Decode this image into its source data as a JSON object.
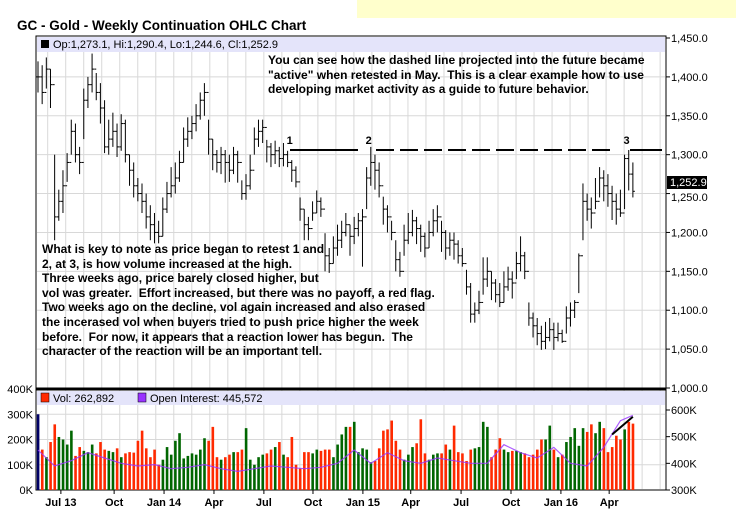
{
  "title": "GC - Gold - Weekly Continuation OHLC Chart",
  "price_legend": "Op:1,273.1, Hi:1,290.4, Lo:1,244.6, Cl:1,252.9",
  "volume_legend": {
    "vol": "Vol: 262,892",
    "oi": "Open Interest: 445,572"
  },
  "last_price_label": "1,252.9",
  "annotations": {
    "top": "You can see how the dashed line projected into the future became\n\"active\" when retested in May.  This is a clear example how to use\ndeveloping market activity as a guide to future behavior.",
    "bottom": "What is key to note as price began to retest 1 and\n2, at 3, is how volume increased at the high.\nThree weeks ago, price barely closed higher, but\nvol was greater.  Effort increased, but there was no payoff, a red flag.\nTwo weeks ago on the decline, vol again increased and also erased\nthe incerased vol when buyers tried to push price higher the week\nbefore.  For now, it appears that a reaction lower has begun.  The\ncharacter of the reaction will be an important tell.",
    "markers": [
      {
        "label": "1",
        "week": 60
      },
      {
        "label": "2",
        "week": 79
      },
      {
        "label": "3",
        "week": 141
      }
    ]
  },
  "colors": {
    "up": "#006600",
    "down": "#ff2a00",
    "unchanged": "#000066",
    "oi": "#9933ff",
    "band": "#e4e4fa",
    "grid": "#d8d8d8"
  },
  "chart_data": {
    "type": "ohlc",
    "price": {
      "ylim": [
        1000,
        1450
      ],
      "ticks": [
        "1,000.0",
        "1,050.0",
        "1,100.0",
        "1,150.0",
        "1,200.0",
        "1,250.0",
        "1,300.0",
        "1,350.0",
        "1,400.0",
        "1,450.0"
      ],
      "tick_values": [
        1000,
        1050,
        1100,
        1150,
        1200,
        1250,
        1300,
        1350,
        1400,
        1450
      ],
      "resistance_level": 1306,
      "bars_hlc": [
        [
          1420,
          1380,
          1400
        ],
        [
          1415,
          1365,
          1380
        ],
        [
          1425,
          1385,
          1410
        ],
        [
          1410,
          1360,
          1390
        ],
        [
          1300,
          1190,
          1220
        ],
        [
          1255,
          1215,
          1240
        ],
        [
          1280,
          1225,
          1260
        ],
        [
          1302,
          1265,
          1290
        ],
        [
          1345,
          1300,
          1330
        ],
        [
          1340,
          1290,
          1300
        ],
        [
          1310,
          1275,
          1290
        ],
        [
          1385,
          1320,
          1370
        ],
        [
          1400,
          1360,
          1390
        ],
        [
          1430,
          1380,
          1410
        ],
        [
          1405,
          1370,
          1380
        ],
        [
          1392,
          1340,
          1360
        ],
        [
          1370,
          1302,
          1310
        ],
        [
          1345,
          1300,
          1320
        ],
        [
          1354,
          1310,
          1330
        ],
        [
          1340,
          1297,
          1310
        ],
        [
          1352,
          1305,
          1340
        ],
        [
          1345,
          1290,
          1300
        ],
        [
          1300,
          1260,
          1280
        ],
        [
          1290,
          1245,
          1260
        ],
        [
          1270,
          1240,
          1250
        ],
        [
          1263,
          1225,
          1240
        ],
        [
          1250,
          1205,
          1220
        ],
        [
          1235,
          1190,
          1210
        ],
        [
          1225,
          1186,
          1200
        ],
        [
          1215,
          1186,
          1195
        ],
        [
          1245,
          1195,
          1230
        ],
        [
          1265,
          1225,
          1250
        ],
        [
          1284,
          1245,
          1260
        ],
        [
          1290,
          1250,
          1270
        ],
        [
          1305,
          1265,
          1290
        ],
        [
          1335,
          1290,
          1320
        ],
        [
          1348,
          1310,
          1330
        ],
        [
          1350,
          1320,
          1340
        ],
        [
          1365,
          1330,
          1350
        ],
        [
          1380,
          1345,
          1370
        ],
        [
          1392,
          1350,
          1380
        ],
        [
          1345,
          1300,
          1320
        ],
        [
          1320,
          1280,
          1300
        ],
        [
          1306,
          1277,
          1290
        ],
        [
          1310,
          1275,
          1300
        ],
        [
          1306,
          1264,
          1290
        ],
        [
          1300,
          1265,
          1280
        ],
        [
          1310,
          1275,
          1300
        ],
        [
          1305,
          1264,
          1290
        ],
        [
          1267,
          1242,
          1250
        ],
        [
          1275,
          1242,
          1260
        ],
        [
          1300,
          1255,
          1280
        ],
        [
          1335,
          1300,
          1320
        ],
        [
          1345,
          1310,
          1330
        ],
        [
          1345,
          1315,
          1335
        ],
        [
          1319,
          1290,
          1310
        ],
        [
          1315,
          1284,
          1300
        ],
        [
          1318,
          1288,
          1305
        ],
        [
          1310,
          1284,
          1295
        ],
        [
          1315,
          1285,
          1300
        ],
        [
          1305,
          1284,
          1290
        ],
        [
          1293,
          1265,
          1280
        ],
        [
          1285,
          1258,
          1265
        ],
        [
          1245,
          1215,
          1230
        ],
        [
          1230,
          1190,
          1210
        ],
        [
          1220,
          1190,
          1205
        ],
        [
          1240,
          1215,
          1225
        ],
        [
          1254,
          1225,
          1240
        ],
        [
          1245,
          1220,
          1230
        ],
        [
          1199,
          1150,
          1170
        ],
        [
          1180,
          1148,
          1160
        ],
        [
          1195,
          1160,
          1180
        ],
        [
          1210,
          1170,
          1190
        ],
        [
          1215,
          1180,
          1200
        ],
        [
          1225,
          1195,
          1210
        ],
        [
          1210,
          1170,
          1195
        ],
        [
          1220,
          1185,
          1205
        ],
        [
          1225,
          1195,
          1215
        ],
        [
          1230,
          1156,
          1220
        ],
        [
          1284,
          1230,
          1270
        ],
        [
          1310,
          1260,
          1290
        ],
        [
          1300,
          1255,
          1280
        ],
        [
          1290,
          1245,
          1260
        ],
        [
          1246,
          1210,
          1230
        ],
        [
          1235,
          1200,
          1220
        ],
        [
          1215,
          1190,
          1200
        ],
        [
          1190,
          1150,
          1165
        ],
        [
          1175,
          1143,
          1150
        ],
        [
          1210,
          1170,
          1190
        ],
        [
          1225,
          1185,
          1200
        ],
        [
          1229,
          1195,
          1215
        ],
        [
          1220,
          1185,
          1205
        ],
        [
          1210,
          1175,
          1195
        ],
        [
          1200,
          1168,
          1180
        ],
        [
          1215,
          1180,
          1200
        ],
        [
          1230,
          1195,
          1215
        ],
        [
          1235,
          1200,
          1220
        ],
        [
          1215,
          1175,
          1200
        ],
        [
          1203,
          1165,
          1180
        ],
        [
          1200,
          1170,
          1190
        ],
        [
          1200,
          1165,
          1185
        ],
        [
          1190,
          1160,
          1170
        ],
        [
          1180,
          1156,
          1160
        ],
        [
          1152,
          1120,
          1130
        ],
        [
          1135,
          1084,
          1095
        ],
        [
          1110,
          1084,
          1100
        ],
        [
          1125,
          1095,
          1110
        ],
        [
          1168,
          1120,
          1140
        ],
        [
          1168,
          1130,
          1150
        ],
        [
          1150,
          1113,
          1135
        ],
        [
          1140,
          1110,
          1120
        ],
        [
          1135,
          1104,
          1110
        ],
        [
          1150,
          1110,
          1130
        ],
        [
          1156,
          1125,
          1140
        ],
        [
          1150,
          1115,
          1135
        ],
        [
          1175,
          1140,
          1160
        ],
        [
          1195,
          1150,
          1170
        ],
        [
          1175,
          1140,
          1150
        ],
        [
          1110,
          1080,
          1090
        ],
        [
          1097,
          1065,
          1080
        ],
        [
          1090,
          1055,
          1070
        ],
        [
          1080,
          1049,
          1060
        ],
        [
          1085,
          1050,
          1065
        ],
        [
          1090,
          1060,
          1075
        ],
        [
          1084,
          1049,
          1065
        ],
        [
          1084,
          1060,
          1070
        ],
        [
          1075,
          1058,
          1060
        ],
        [
          1105,
          1070,
          1090
        ],
        [
          1110,
          1079,
          1100
        ],
        [
          1113,
          1090,
          1110
        ],
        [
          1173,
          1122,
          1170
        ],
        [
          1263,
          1190,
          1240
        ],
        [
          1250,
          1215,
          1230
        ],
        [
          1245,
          1205,
          1225
        ],
        [
          1270,
          1230,
          1240
        ],
        [
          1284,
          1245,
          1270
        ],
        [
          1280,
          1240,
          1260
        ],
        [
          1275,
          1233,
          1250
        ],
        [
          1260,
          1216,
          1240
        ],
        [
          1250,
          1210,
          1230
        ],
        [
          1255,
          1220,
          1225
        ],
        [
          1300,
          1230,
          1295
        ],
        [
          1306,
          1254,
          1275
        ],
        [
          1290,
          1245,
          1252.9
        ]
      ]
    },
    "volume": {
      "ylim_k": [
        0,
        400
      ],
      "left_ticks": [
        "0K",
        "100K",
        "200K",
        "300K",
        "400K"
      ],
      "right_ticks": [
        "300K",
        "400K",
        "500K",
        "600K"
      ],
      "right_ylim_k": [
        300,
        600
      ],
      "values_k": [
        300,
        160,
        130,
        190,
        260,
        210,
        200,
        180,
        235,
        135,
        170,
        155,
        150,
        180,
        145,
        190,
        160,
        155,
        150,
        165,
        130,
        145,
        150,
        148,
        195,
        235,
        165,
        130,
        160,
        100,
        120,
        170,
        140,
        195,
        225,
        125,
        135,
        145,
        140,
        160,
        205,
        195,
        250,
        130,
        120,
        130,
        140,
        150,
        150,
        160,
        245,
        120,
        100,
        130,
        140,
        145,
        160,
        170,
        190,
        140,
        130,
        210,
        100,
        85,
        150,
        150,
        145,
        160,
        155,
        160,
        160,
        130,
        180,
        220,
        250,
        250,
        270,
        150,
        165,
        160,
        110,
        115,
        165,
        235,
        240,
        275,
        195,
        160,
        120,
        140,
        170,
        185,
        280,
        145,
        120,
        140,
        145,
        145,
        180,
        160,
        255,
        150,
        145,
        115,
        160,
        165,
        170,
        270,
        250,
        130,
        160,
        205,
        160,
        150,
        155,
        155,
        150,
        145,
        130,
        140,
        160,
        200,
        200,
        255,
        160,
        130,
        140,
        190,
        210,
        245,
        175,
        245,
        230,
        260,
        225,
        270,
        245,
        150,
        170,
        215,
        200,
        240,
        270,
        262.9
      ],
      "open_interest_k_every_4_weeks": [
        450,
        390,
        410,
        440,
        420,
        400,
        390,
        395,
        380,
        385,
        395,
        380,
        370,
        380,
        390,
        385,
        380,
        385,
        400,
        450,
        400,
        440,
        410,
        400,
        420,
        410,
        400,
        400,
        470,
        440,
        420,
        460,
        400,
        390,
        460,
        560,
        580
      ],
      "trendline_k": [
        [
          138,
          220
        ],
        [
          143,
          290
        ]
      ]
    },
    "x_ticks": [
      {
        "label": "Jul 13",
        "week": 5.5
      },
      {
        "label": "Oct",
        "week": 18.3
      },
      {
        "label": "Jan 14",
        "week": 30.3
      },
      {
        "label": "Apr",
        "week": 42.3
      },
      {
        "label": "Jul",
        "week": 54.3
      },
      {
        "label": "Oct",
        "week": 66.1
      },
      {
        "label": "Jan 15",
        "week": 78.1
      },
      {
        "label": "Apr",
        "week": 89.6
      },
      {
        "label": "Jul",
        "week": 101.7
      },
      {
        "label": "Oct",
        "week": 113.7
      },
      {
        "label": "Jan 16",
        "week": 125.7
      },
      {
        "label": "Apr",
        "week": 137.3
      }
    ]
  }
}
